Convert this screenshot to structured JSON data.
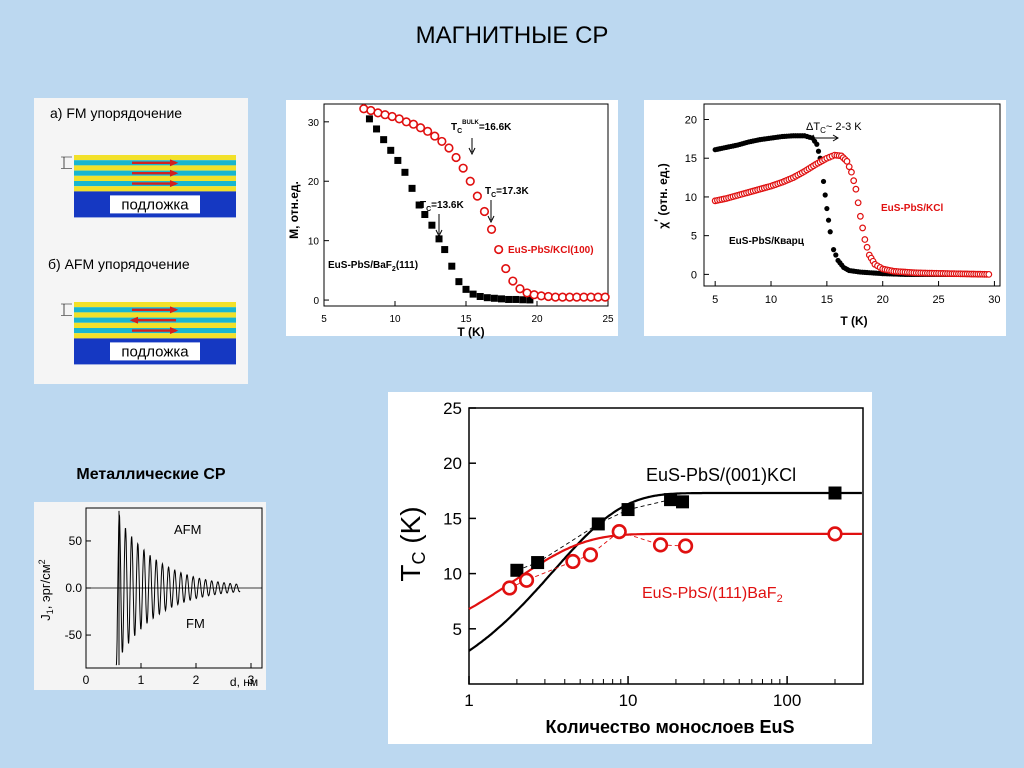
{
  "page": {
    "title": "МАГНИТНЫЕ СР"
  },
  "layers_panel": {
    "fm_label": "а) FM упорядочение",
    "afm_label": "б) AFM упорядочение",
    "substrate": "подложка",
    "colors": {
      "substrate": "#1538c2",
      "yellow": "#f2e12a",
      "cyan": "#18b6d0",
      "arrow": "#d02020"
    }
  },
  "metallic_title": "Металлические СР",
  "chart_data": [
    {
      "type": "scatter",
      "ylabel": "M, отн.ед.",
      "xlabel": "T (K)",
      "xlim": [
        5,
        25
      ],
      "ylim": [
        -1,
        33
      ],
      "xticks": [
        5,
        10,
        15,
        20,
        25
      ],
      "yticks": [
        0,
        10,
        20,
        30
      ],
      "series": [
        {
          "name": "EuS-PbS/BaF2(111)",
          "color": "#000000",
          "marker": "square-filled",
          "x": [
            8.2,
            8.7,
            9.2,
            9.7,
            10.2,
            10.7,
            11.2,
            11.7,
            12.1,
            12.6,
            13.1,
            13.5,
            14.0,
            14.5,
            15.0,
            15.5,
            16.0,
            16.5,
            17.0,
            17.5,
            18.0,
            18.5,
            19.0,
            19.5
          ],
          "y": [
            30.5,
            28.8,
            27.0,
            25.2,
            23.5,
            21.5,
            18.8,
            16.0,
            14.4,
            12.6,
            10.3,
            8.5,
            5.7,
            3.1,
            1.8,
            1.0,
            0.6,
            0.4,
            0.3,
            0.2,
            0.1,
            0.1,
            0.05,
            0.02
          ]
        },
        {
          "name": "EuS-PbS/KCl(100)",
          "color": "#e01010",
          "marker": "circle-open",
          "x": [
            7.8,
            8.3,
            8.8,
            9.3,
            9.8,
            10.3,
            10.8,
            11.3,
            11.8,
            12.3,
            12.8,
            13.3,
            13.8,
            14.3,
            14.8,
            15.3,
            15.8,
            16.3,
            16.8,
            17.3,
            17.8,
            18.3,
            18.8,
            19.3,
            19.8,
            20.3,
            20.8,
            21.3,
            21.8,
            22.3,
            22.8,
            23.3,
            23.8,
            24.3,
            24.8
          ],
          "y": [
            32.2,
            31.9,
            31.5,
            31.2,
            30.9,
            30.5,
            30.0,
            29.6,
            29.0,
            28.4,
            27.6,
            26.7,
            25.6,
            24.0,
            22.2,
            20.0,
            17.5,
            14.9,
            11.9,
            8.5,
            5.3,
            3.2,
            1.9,
            1.2,
            0.9,
            0.7,
            0.6,
            0.5,
            0.5,
            0.5,
            0.5,
            0.5,
            0.5,
            0.5,
            0.5
          ]
        }
      ],
      "annotations": [
        {
          "text": "T",
          "sub": "C",
          "sup": "BULK",
          "tail": "=16.6K"
        },
        {
          "text": "T",
          "sub": "C",
          "tail": "=17.3K"
        },
        {
          "text": "T",
          "sub": "C",
          "tail": "=13.6K"
        }
      ],
      "legend_labels": {
        "baf2_main": "EuS-PbS/BaF",
        "baf2_sub": "2",
        "baf2_tail": "(111)",
        "kcl": "EuS-PbS/KCl(100)"
      }
    },
    {
      "type": "scatter",
      "ylabel_main": "χ",
      "ylabel_prime": "′",
      "ylabel_tail": "(отн. ед.)",
      "xlabel": "T (K)",
      "xlim": [
        4,
        30.5
      ],
      "ylim": [
        -1.5,
        22
      ],
      "xticks": [
        5,
        10,
        15,
        20,
        25,
        30
      ],
      "yticks": [
        0,
        5,
        10,
        15,
        20
      ],
      "annotation": {
        "pre": "ΔT",
        "sub": "C",
        "tail": "~ 2-3 K"
      },
      "series": [
        {
          "name": "EuS-PbS/Кварц",
          "color": "#000000",
          "marker": "circle-filled",
          "points": [
            [
              5,
              16.1
            ],
            [
              6,
              16.4
            ],
            [
              7,
              16.7
            ],
            [
              8,
              17.1
            ],
            [
              9,
              17.4
            ],
            [
              10,
              17.6
            ],
            [
              11,
              17.8
            ],
            [
              12,
              17.9
            ],
            [
              13,
              17.9
            ],
            [
              13.7,
              17.6
            ],
            [
              14.1,
              16.8
            ],
            [
              14.4,
              15.0
            ],
            [
              14.7,
              12.0
            ],
            [
              15.0,
              8.5
            ],
            [
              15.3,
              5.5
            ],
            [
              15.6,
              3.2
            ],
            [
              16.0,
              1.8
            ],
            [
              16.5,
              0.9
            ],
            [
              17,
              0.5
            ],
            [
              18,
              0.3
            ],
            [
              20,
              0.1
            ],
            [
              22,
              0
            ],
            [
              25,
              0
            ],
            [
              28,
              0
            ],
            [
              29.5,
              0
            ]
          ]
        },
        {
          "name": "EuS-PbS/KCl",
          "color": "#e01010",
          "marker": "circle-open",
          "points": [
            [
              5,
              9.5
            ],
            [
              6,
              9.8
            ],
            [
              7,
              10.2
            ],
            [
              8,
              10.6
            ],
            [
              9,
              11.0
            ],
            [
              10,
              11.4
            ],
            [
              11,
              11.9
            ],
            [
              12,
              12.5
            ],
            [
              13,
              13.3
            ],
            [
              14,
              14.2
            ],
            [
              15,
              15.0
            ],
            [
              15.7,
              15.4
            ],
            [
              16.3,
              15.3
            ],
            [
              16.8,
              14.6
            ],
            [
              17.2,
              13.2
            ],
            [
              17.6,
              11.0
            ],
            [
              18.0,
              7.5
            ],
            [
              18.4,
              4.5
            ],
            [
              18.8,
              2.5
            ],
            [
              19.3,
              1.3
            ],
            [
              20,
              0.7
            ],
            [
              21,
              0.4
            ],
            [
              23,
              0.2
            ],
            [
              26,
              0.1
            ],
            [
              29.5,
              0
            ]
          ]
        }
      ]
    },
    {
      "type": "line",
      "ylabel_main": "J",
      "ylabel_sub": "1",
      "ylabel_tail": ", эрг/см",
      "ylabel_sup": "2",
      "xlabel": "d, нм",
      "xlim": [
        0,
        3.2
      ],
      "ylim": [
        -85,
        85
      ],
      "xticks": [
        0,
        1,
        2,
        3
      ],
      "yticks": [
        50,
        0,
        -50
      ],
      "ytick_labels": [
        "50",
        "0.0",
        "-50"
      ],
      "region_labels": {
        "afm": "AFM",
        "fm": "FM"
      },
      "color": "#000000"
    },
    {
      "type": "scatter",
      "ylabel_main": "T",
      "ylabel_sub": "C",
      "ylabel_tail": "(K)",
      "xlabel": "Количество монослоев EuS",
      "xscale": "log",
      "xlim": [
        1,
        300
      ],
      "ylim": [
        0,
        25
      ],
      "xticks": [
        1,
        10,
        100
      ],
      "yticks": [
        5,
        10,
        15,
        20,
        25
      ],
      "series": [
        {
          "name_main": "EuS-PbS/(001)KCl",
          "name_sub": "",
          "color": "#000000",
          "marker": "square-filled",
          "x": [
            2.0,
            2.7,
            6.5,
            10.0,
            18.5,
            22.0,
            200
          ],
          "y": [
            10.3,
            11.0,
            14.5,
            15.8,
            16.7,
            16.5,
            17.3
          ]
        },
        {
          "name_main": "EuS-PbS/(111)BaF",
          "name_sub": "2",
          "color": "#e01010",
          "marker": "circle-open",
          "x": [
            1.8,
            2.3,
            4.5,
            5.8,
            8.8,
            16.0,
            23.0,
            200
          ],
          "y": [
            8.7,
            9.4,
            11.1,
            11.7,
            13.8,
            12.6,
            12.5,
            13.6
          ]
        }
      ]
    }
  ]
}
